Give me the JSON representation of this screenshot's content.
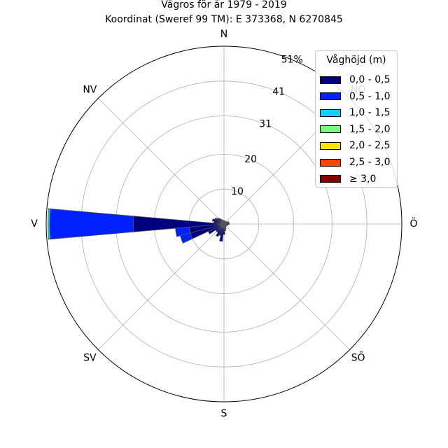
{
  "title": {
    "line1": "Vågros för år 1979 - 2019",
    "line2": "Koordinat (Sweref 99 TM): E 373368, N 6270845"
  },
  "legend": {
    "title": "Våghöjd (m)",
    "items": [
      {
        "label": "0,0 - 0,5",
        "color": "#00007f"
      },
      {
        "label": "0,5 - 1,0",
        "color": "#0020ff"
      },
      {
        "label": "1,0 - 1,5",
        "color": "#00d4ff"
      },
      {
        "label": "1,5 - 2,0",
        "color": "#7bff7b"
      },
      {
        "label": "2,0 - 2,5",
        "color": "#ffe500"
      },
      {
        "label": "2,5 - 3,0",
        "color": "#ff4600"
      },
      {
        "label": "≥ 3,0",
        "color": "#7f0000"
      }
    ]
  },
  "chart_data": {
    "type": "windrose",
    "directions": [
      {
        "label": "N",
        "angle": 0
      },
      {
        "label": "NV",
        "angle": 315
      },
      {
        "label": "V",
        "angle": 270
      },
      {
        "label": "SV",
        "angle": 225
      },
      {
        "label": "S",
        "angle": 180
      },
      {
        "label": "SÖ",
        "angle": 135
      },
      {
        "label": "Ö",
        "angle": 90
      },
      {
        "label": "NO",
        "angle": 45
      }
    ],
    "radial_ticks": [
      "10",
      "20",
      "31",
      "41",
      "51%"
    ],
    "radial_tick_values": [
      10,
      20,
      31,
      41,
      51
    ],
    "rmax": 51,
    "sector_width_deg": 10,
    "sectors": [
      {
        "angle": 270,
        "values": [
          26,
          24,
          0.5,
          0,
          0,
          0,
          0
        ]
      },
      {
        "angle": 260,
        "values": [
          10,
          4,
          0,
          0,
          0,
          0,
          0
        ]
      },
      {
        "angle": 250,
        "values": [
          10,
          3,
          0,
          0,
          0,
          0,
          0
        ]
      },
      {
        "angle": 240,
        "values": [
          5,
          0,
          0,
          0,
          0,
          0,
          0
        ]
      },
      {
        "angle": 230,
        "values": [
          3,
          0,
          0,
          0,
          0,
          0,
          0
        ]
      },
      {
        "angle": 220,
        "values": [
          3,
          0,
          0,
          0,
          0,
          0,
          0
        ]
      },
      {
        "angle": 210,
        "values": [
          4,
          0,
          0,
          0,
          0,
          0,
          0
        ]
      },
      {
        "angle": 200,
        "values": [
          3.5,
          0,
          0,
          0,
          0,
          0,
          0
        ]
      },
      {
        "angle": 190,
        "values": [
          5,
          0,
          0,
          0,
          0,
          0,
          0
        ]
      },
      {
        "angle": 180,
        "values": [
          3,
          0,
          0,
          0,
          0,
          0,
          0
        ]
      },
      {
        "angle": 170,
        "values": [
          2,
          0,
          0,
          0,
          0,
          0,
          0
        ]
      },
      {
        "angle": 160,
        "values": [
          1.5,
          0,
          0,
          0,
          0,
          0,
          0
        ]
      },
      {
        "angle": 150,
        "values": [
          1,
          0,
          0,
          0,
          0,
          0,
          0
        ]
      },
      {
        "angle": 140,
        "values": [
          0.8,
          0,
          0,
          0,
          0,
          0,
          0
        ]
      },
      {
        "angle": 130,
        "values": [
          0.8,
          0,
          0,
          0,
          0,
          0,
          0
        ]
      },
      {
        "angle": 120,
        "values": [
          1,
          0,
          0,
          0,
          0,
          0,
          0
        ]
      },
      {
        "angle": 110,
        "values": [
          1,
          0,
          0,
          0,
          0,
          0,
          0
        ]
      },
      {
        "angle": 100,
        "values": [
          1.2,
          0,
          0,
          0,
          0,
          0,
          0
        ]
      },
      {
        "angle": 90,
        "values": [
          1.5,
          0,
          0,
          0,
          0,
          0,
          0
        ]
      },
      {
        "angle": 80,
        "values": [
          1.5,
          0,
          0,
          0,
          0,
          0,
          0
        ]
      },
      {
        "angle": 70,
        "values": [
          1.5,
          0,
          0,
          0,
          0,
          0,
          0
        ]
      },
      {
        "angle": 60,
        "values": [
          1.2,
          0,
          0,
          0,
          0,
          0,
          0
        ]
      },
      {
        "angle": 50,
        "values": [
          1,
          0,
          0,
          0,
          0,
          0,
          0
        ]
      },
      {
        "angle": 40,
        "values": [
          0.8,
          0,
          0,
          0,
          0,
          0,
          0
        ]
      },
      {
        "angle": 30,
        "values": [
          0.8,
          0,
          0,
          0,
          0,
          0,
          0
        ]
      },
      {
        "angle": 20,
        "values": [
          0.8,
          0,
          0,
          0,
          0,
          0,
          0
        ]
      },
      {
        "angle": 10,
        "values": [
          1,
          0,
          0,
          0,
          0,
          0,
          0
        ]
      },
      {
        "angle": 0,
        "values": [
          1,
          0,
          0,
          0,
          0,
          0,
          0
        ]
      },
      {
        "angle": 350,
        "values": [
          1,
          0,
          0,
          0,
          0,
          0,
          0
        ]
      },
      {
        "angle": 340,
        "values": [
          1.2,
          0,
          0,
          0,
          0,
          0,
          0
        ]
      },
      {
        "angle": 330,
        "values": [
          1.5,
          0,
          0,
          0,
          0,
          0,
          0
        ]
      },
      {
        "angle": 320,
        "values": [
          2,
          0,
          0,
          0,
          0,
          0,
          0
        ]
      },
      {
        "angle": 310,
        "values": [
          2.5,
          0,
          0,
          0,
          0,
          0,
          0
        ]
      },
      {
        "angle": 300,
        "values": [
          3,
          0,
          0,
          0,
          0,
          0,
          0
        ]
      },
      {
        "angle": 290,
        "values": [
          3.5,
          0,
          0,
          0,
          0,
          0,
          0
        ]
      },
      {
        "angle": 280,
        "values": [
          3,
          0,
          0,
          0,
          0,
          0,
          0
        ]
      }
    ]
  }
}
